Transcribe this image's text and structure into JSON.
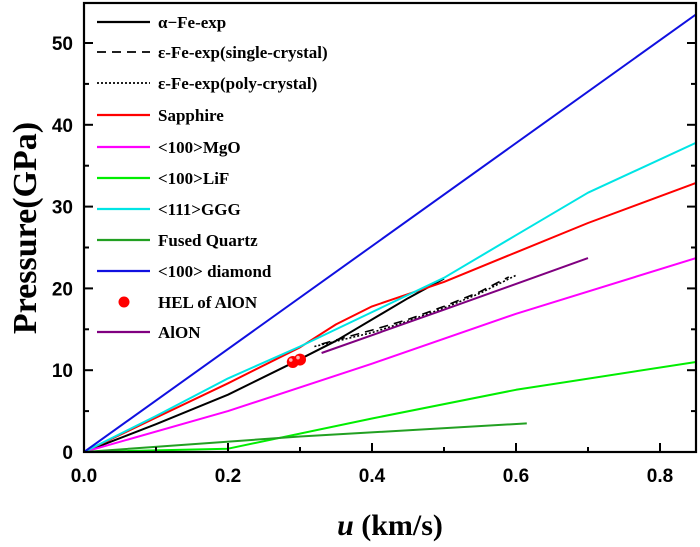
{
  "chart_data": {
    "type": "line",
    "title": "",
    "xlabel_italic": "u",
    "xlabel_rest": " (km/s)",
    "ylabel": "Pressure(GPa)",
    "xlim": [
      0,
      0.85
    ],
    "ylim": [
      0,
      54
    ],
    "xticks": [
      0.0,
      0.2,
      0.4,
      0.6,
      0.8
    ],
    "xtick_labels": [
      "0.0",
      "0.2",
      "0.4",
      "0.6",
      "0.8"
    ],
    "xminor": [
      0.1,
      0.3,
      0.5,
      0.7
    ],
    "yticks": [
      0,
      10,
      20,
      30,
      40,
      50
    ],
    "ytick_labels": [
      "0",
      "10",
      "20",
      "30",
      "40",
      "50"
    ],
    "yminor": [
      5,
      15,
      25,
      35,
      45
    ],
    "grid": false,
    "legend_position": "top-left",
    "series": [
      {
        "name": "α−Fe-exp",
        "color": "#000000",
        "style": "solid",
        "kind": "line",
        "points": [
          [
            0,
            0
          ],
          [
            0.1,
            3.4
          ],
          [
            0.2,
            7.0
          ],
          [
            0.29,
            10.9
          ],
          [
            0.35,
            13.6
          ],
          [
            0.4,
            16.2
          ],
          [
            0.45,
            18.8
          ],
          [
            0.5,
            21.2
          ]
        ]
      },
      {
        "name": "ε-Fe-exp(single-crystal)",
        "color": "#000000",
        "style": "dashed",
        "kind": "line",
        "points": [
          [
            0.33,
            13.2
          ],
          [
            0.4,
            14.9
          ],
          [
            0.45,
            16.2
          ],
          [
            0.5,
            17.8
          ],
          [
            0.55,
            19.6
          ],
          [
            0.59,
            21.4
          ]
        ]
      },
      {
        "name": "ε-Fe-exp(poly-crystal)",
        "color": "#000000",
        "style": "dotted",
        "kind": "line",
        "points": [
          [
            0.32,
            12.9
          ],
          [
            0.4,
            14.6
          ],
          [
            0.45,
            16.0
          ],
          [
            0.5,
            17.6
          ],
          [
            0.55,
            19.4
          ],
          [
            0.6,
            21.6
          ]
        ]
      },
      {
        "name": "Sapphire",
        "color": "#ff0000",
        "style": "solid",
        "kind": "line",
        "points": [
          [
            0,
            0
          ],
          [
            0.1,
            4.2
          ],
          [
            0.2,
            8.4
          ],
          [
            0.3,
            12.8
          ],
          [
            0.35,
            15.6
          ],
          [
            0.4,
            17.8
          ],
          [
            0.5,
            20.8
          ],
          [
            0.6,
            24.4
          ],
          [
            0.7,
            28.0
          ],
          [
            0.85,
            32.9
          ]
        ]
      },
      {
        "name": "<100>MgO",
        "color": "#ff00ff",
        "style": "solid",
        "kind": "line",
        "points": [
          [
            0,
            0
          ],
          [
            0.2,
            5.0
          ],
          [
            0.4,
            10.8
          ],
          [
            0.6,
            16.9
          ],
          [
            0.85,
            23.7
          ]
        ]
      },
      {
        "name": "<100>LiF",
        "color": "#00ee00",
        "style": "solid",
        "kind": "line",
        "points": [
          [
            0,
            0
          ],
          [
            0.2,
            0.4
          ],
          [
            0.4,
            4.1
          ],
          [
            0.6,
            7.6
          ],
          [
            0.85,
            11.0
          ]
        ]
      },
      {
        "name": "<111>GGG",
        "color": "#00e5e5",
        "style": "solid",
        "kind": "line",
        "points": [
          [
            0,
            0
          ],
          [
            0.1,
            4.4
          ],
          [
            0.2,
            9.0
          ],
          [
            0.3,
            12.9
          ],
          [
            0.4,
            17.1
          ],
          [
            0.5,
            21.3
          ],
          [
            0.6,
            26.5
          ],
          [
            0.7,
            31.7
          ],
          [
            0.85,
            37.8
          ]
        ]
      },
      {
        "name": "Fused Quartz",
        "color": "#22a022",
        "style": "solid",
        "kind": "line",
        "points": [
          [
            0,
            0
          ],
          [
            0.3,
            1.9
          ],
          [
            0.615,
            3.5
          ]
        ]
      },
      {
        "name": "<100> diamond",
        "color": "#1010e0",
        "style": "solid",
        "kind": "line",
        "points": [
          [
            0,
            0
          ],
          [
            0.85,
            53.5
          ]
        ]
      },
      {
        "name": "HEL of AlON",
        "color": "#ff0000",
        "style": "marker",
        "kind": "scatter",
        "points": [
          [
            0.29,
            11.0
          ],
          [
            0.3,
            11.3
          ]
        ]
      },
      {
        "name": "AlON",
        "color": "#800080",
        "style": "solid",
        "kind": "line",
        "points": [
          [
            0.33,
            12.1
          ],
          [
            0.5,
            17.4
          ],
          [
            0.7,
            23.7
          ]
        ]
      }
    ]
  }
}
